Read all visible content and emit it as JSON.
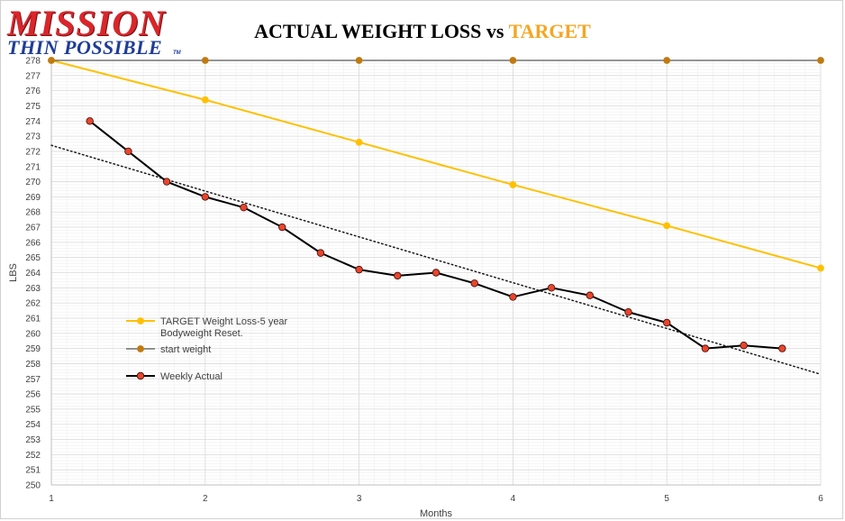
{
  "logo": {
    "main": "MISSION",
    "sub": "THIN POSSIBLE",
    "tm": "TM"
  },
  "header": {
    "title_main": "ACTUAL WEIGHT LOSS vs ",
    "title_accent": "TARGET"
  },
  "colors": {
    "target": "#FFC000",
    "start": "#2b2b2b",
    "start_marker": "#C07A10",
    "actual_line": "#000000",
    "actual_marker": "#E8452C",
    "trend": "#1a1a1a",
    "grid_major": "#d9d9d9",
    "grid_minor": "#efefef"
  },
  "chart_data": {
    "type": "line",
    "title": "ACTUAL WEIGHT LOSS vs TARGET",
    "xlabel": "Months",
    "ylabel": "LBS",
    "xlim": [
      1,
      6
    ],
    "ylim": [
      250,
      278
    ],
    "x_ticks": [
      1,
      2,
      3,
      4,
      5,
      6
    ],
    "y_ticks": [
      250,
      251,
      252,
      253,
      254,
      255,
      256,
      257,
      258,
      259,
      260,
      261,
      262,
      263,
      264,
      265,
      266,
      267,
      268,
      269,
      270,
      271,
      272,
      273,
      274,
      275,
      276,
      277,
      278
    ],
    "grid": true,
    "legend_position": "left-center",
    "series": [
      {
        "name": "TARGET Weight Loss-5 year Bodyweight Reset.",
        "legend_lines": [
          "TARGET Weight Loss-5 year",
          "Bodyweight Reset."
        ],
        "x": [
          1,
          2,
          3,
          4,
          5,
          6
        ],
        "y": [
          278,
          275.4,
          272.6,
          269.8,
          267.1,
          264.3
        ]
      },
      {
        "name": "start weight",
        "x": [
          1,
          2,
          3,
          4,
          5,
          6
        ],
        "y": [
          278,
          278,
          278,
          278,
          278,
          278
        ]
      },
      {
        "name": "Weekly Actual",
        "x": [
          1.25,
          1.5,
          1.75,
          2,
          2.25,
          2.5,
          2.75,
          3,
          3.25,
          3.5,
          3.75,
          4,
          4.25,
          4.5,
          4.75,
          5,
          5.25,
          5.5,
          5.75
        ],
        "y": [
          274,
          272,
          270,
          269,
          268.3,
          267,
          265.3,
          264.2,
          263.8,
          264,
          263.3,
          262.4,
          263,
          262.5,
          261.4,
          260.7,
          259,
          259.2,
          259
        ]
      }
    ],
    "trendline": {
      "x": [
        1,
        6
      ],
      "y": [
        272.4,
        257.3
      ],
      "style": "dotted"
    }
  }
}
